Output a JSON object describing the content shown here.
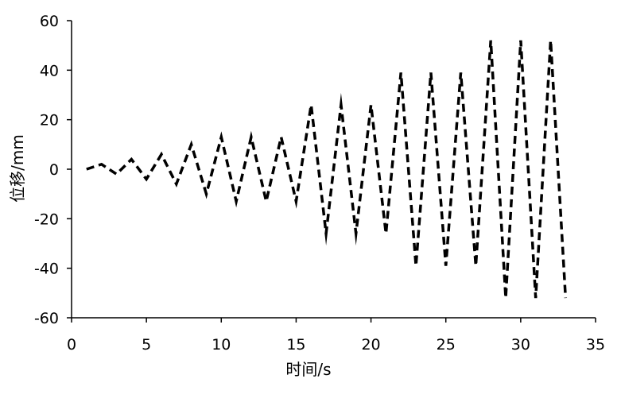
{
  "chart_data": {
    "type": "line",
    "title": "",
    "xlabel": "时间/s",
    "ylabel": "位移/mm",
    "xlim": [
      0,
      35
    ],
    "ylim": [
      -60,
      60
    ],
    "xticks": [
      0,
      5,
      10,
      15,
      20,
      25,
      30,
      35
    ],
    "yticks": [
      -60,
      -40,
      -20,
      0,
      20,
      40,
      60
    ],
    "xtick_labels": [
      "0",
      "5",
      "10",
      "15",
      "20",
      "25",
      "30",
      "35"
    ],
    "ytick_labels": [
      "-60",
      "-40",
      "-20",
      "0",
      "20",
      "40",
      "60"
    ],
    "grid": false,
    "legend": "none",
    "series": [
      {
        "line_style": "dashed",
        "color": "#000000",
        "x": [
          1,
          2,
          3,
          4,
          5,
          6,
          7,
          8,
          9,
          10,
          11,
          12,
          13,
          14,
          15,
          16,
          17,
          18,
          19,
          20,
          21,
          22,
          23,
          24,
          25,
          26,
          27,
          28,
          29,
          30,
          31,
          32,
          33
        ],
        "y": [
          0,
          2,
          -2,
          4,
          -4,
          6,
          -6,
          10,
          -10,
          13,
          -13,
          13,
          -13,
          13,
          -13,
          26,
          -26,
          26,
          -26,
          26,
          -26,
          39,
          -39,
          39,
          -39,
          39,
          -39,
          52,
          -52,
          52,
          -52,
          52,
          -52
        ]
      }
    ]
  }
}
